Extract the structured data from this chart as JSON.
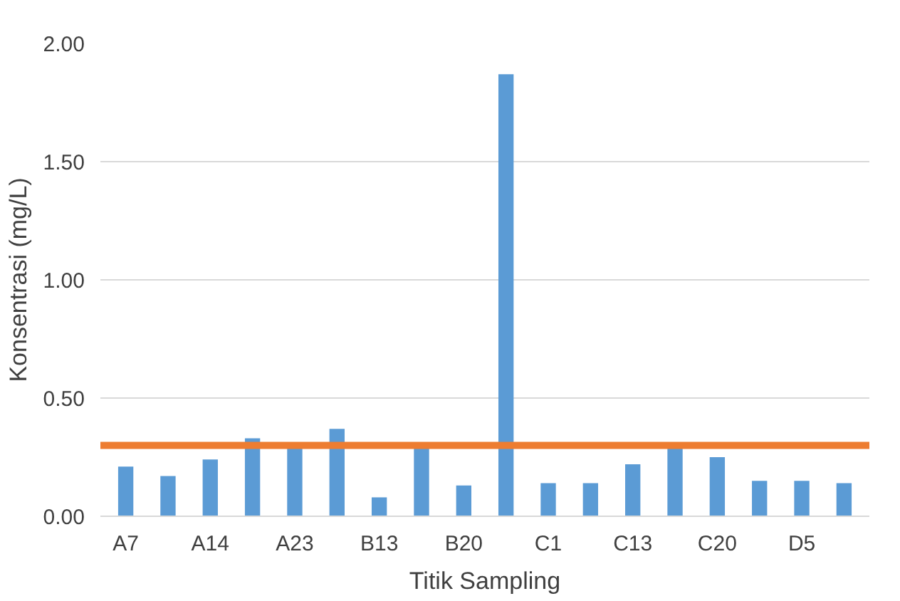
{
  "chart_data": {
    "type": "bar",
    "xlabel": "Titik Sampling",
    "ylabel": "Konsentrasi (mg/L)",
    "categories": [
      "A7",
      null,
      "A14",
      null,
      "A23",
      null,
      "B13",
      null,
      "B20",
      null,
      "C1",
      null,
      "C13",
      null,
      "C20",
      null,
      "D5",
      null
    ],
    "values": [
      0.21,
      0.17,
      0.24,
      0.33,
      0.29,
      0.37,
      0.08,
      0.29,
      0.13,
      1.87,
      0.14,
      0.14,
      0.22,
      0.29,
      0.25,
      0.15,
      0.15,
      0.14
    ],
    "color": "#5b9bd5",
    "ylim": [
      0,
      2
    ],
    "yticks": [
      {
        "value": 0,
        "label": "0.00"
      },
      {
        "value": 0.5,
        "label": "0.50"
      },
      {
        "value": 1,
        "label": "1.00"
      },
      {
        "value": 1.5,
        "label": "1.50"
      },
      {
        "value": 2,
        "label": "2.00"
      }
    ],
    "grid": "y",
    "ref_lines": [
      {
        "axis": "y",
        "value": 0.3,
        "label": null,
        "color": "#ed7d31"
      }
    ]
  }
}
